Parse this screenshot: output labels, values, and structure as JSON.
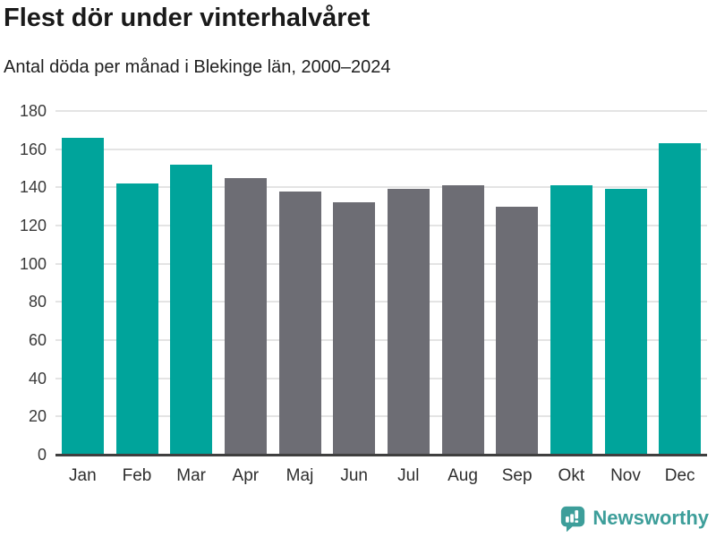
{
  "header": {
    "title": "Flest dör under vinterhalvåret",
    "subtitle": "Antal döda per månad i Blekinge län, 2000–2024"
  },
  "chart_data": {
    "type": "bar",
    "title": "Flest dör under vinterhalvåret",
    "subtitle": "Antal döda per månad i Blekinge län, 2000–2024",
    "categories": [
      "Jan",
      "Feb",
      "Mar",
      "Apr",
      "Maj",
      "Jun",
      "Jul",
      "Aug",
      "Sep",
      "Okt",
      "Nov",
      "Dec"
    ],
    "values": [
      166,
      142,
      152,
      145,
      138,
      132,
      139,
      141,
      130,
      141,
      139,
      163
    ],
    "highlighted": [
      true,
      true,
      true,
      false,
      false,
      false,
      false,
      false,
      false,
      true,
      true,
      true
    ],
    "xlabel": "",
    "ylabel": "",
    "ylim": [
      0,
      180
    ],
    "yticks": [
      0,
      20,
      40,
      60,
      80,
      100,
      120,
      140,
      160,
      180
    ],
    "grid": true,
    "legend": "none",
    "colors": {
      "highlight": "#00a49b",
      "default": "#6d6d74",
      "gridline": "#e4e4e4",
      "axis": "#3f3f3f"
    }
  },
  "footer": {
    "brand": "Newsworthy",
    "logo_icon": "bar-chart-speech-bubble-icon",
    "brand_color": "#3d9e9a"
  }
}
